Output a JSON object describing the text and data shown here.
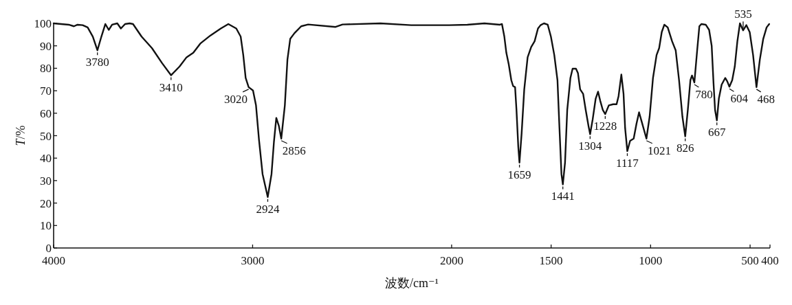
{
  "chart_data": {
    "type": "line",
    "xlabel": "波数/cm⁻¹",
    "ylabel": "*T*/%",
    "xlim": [
      4000,
      400
    ],
    "ylim": [
      0,
      100
    ],
    "xticks": [
      4000,
      3000,
      2000,
      1500,
      1000,
      500,
      400
    ],
    "yticks": [
      0,
      10,
      20,
      30,
      40,
      50,
      60,
      70,
      80,
      90,
      100
    ],
    "series": [
      {
        "color": "#111111",
        "x": [
          4000,
          3924,
          3898,
          3880,
          3854,
          3829,
          3803,
          3780,
          3760,
          3740,
          3723,
          3706,
          3680,
          3662,
          3641,
          3618,
          3601,
          3558,
          3506,
          3455,
          3410,
          3367,
          3332,
          3298,
          3263,
          3212,
          3160,
          3122,
          3082,
          3060,
          3047,
          3035,
          3020,
          2998,
          2983,
          2968,
          2950,
          2924,
          2905,
          2893,
          2881,
          2868,
          2856,
          2838,
          2825,
          2811,
          2790,
          2756,
          2721,
          2583,
          2548,
          2358,
          2203,
          2013,
          1921,
          1835,
          1757,
          1747,
          1735,
          1725,
          1713,
          1700,
          1691,
          1681,
          1674,
          1665,
          1659,
          1648,
          1635,
          1618,
          1600,
          1583,
          1566,
          1553,
          1536,
          1517,
          1501,
          1484,
          1468,
          1458,
          1448,
          1441,
          1430,
          1419,
          1403,
          1392,
          1375,
          1365,
          1354,
          1339,
          1326,
          1312,
          1304,
          1291,
          1276,
          1264,
          1253,
          1240,
          1228,
          1210,
          1188,
          1171,
          1161,
          1147,
          1136,
          1128,
          1117,
          1103,
          1085,
          1071,
          1058,
          1045,
          1021,
          1005,
          988,
          970,
          957,
          944,
          931,
          914,
          892,
          874,
          857,
          840,
          826,
          813,
          800,
          792,
          780,
          766,
          755,
          745,
          723,
          706,
          693,
          684,
          676,
          667,
          657,
          643,
          625,
          615,
          604,
          590,
          577,
          564,
          551,
          535,
          519,
          502,
          485,
          468,
          451,
          434,
          417,
          404
        ],
        "values": [
          100,
          99.4,
          98.7,
          99.4,
          99.2,
          98.2,
          94.1,
          88.0,
          94.1,
          99.7,
          97.1,
          99.4,
          100,
          97.7,
          99.7,
          100,
          99.7,
          94.1,
          89.0,
          82.3,
          76.9,
          80.8,
          84.9,
          86.9,
          91.0,
          94.6,
          97.7,
          99.7,
          97.7,
          94.1,
          85.9,
          75.7,
          71.6,
          70.1,
          63.5,
          48.2,
          32.9,
          22.7,
          32.9,
          47.1,
          57.9,
          54.3,
          48.7,
          63.5,
          83.9,
          93.1,
          95.6,
          98.7,
          99.5,
          98.4,
          99.5,
          100,
          99.2,
          99.2,
          99.4,
          100,
          99.4,
          99.7,
          94.1,
          86.9,
          81.8,
          74.7,
          72.1,
          71.6,
          61.4,
          45.1,
          38.0,
          51.2,
          70.6,
          84.9,
          89.5,
          92.0,
          97.7,
          99.2,
          100,
          99.4,
          94.1,
          85.9,
          74.7,
          53.3,
          32.9,
          28.3,
          38.0,
          61.4,
          75.7,
          79.8,
          79.8,
          77.8,
          70.6,
          68.6,
          61.4,
          54.3,
          50.7,
          57.3,
          66.5,
          69.6,
          65.5,
          61.4,
          59.6,
          63.5,
          64.0,
          64.0,
          67.6,
          77.2,
          68.6,
          53.3,
          43.1,
          47.7,
          48.7,
          55.3,
          60.4,
          56.3,
          48.7,
          58.4,
          75.7,
          85.9,
          89.0,
          96.1,
          99.4,
          98.2,
          92.0,
          88.0,
          74.7,
          58.4,
          49.7,
          61.4,
          74.7,
          76.8,
          73.7,
          88.0,
          98.7,
          99.7,
          99.4,
          97.1,
          90.0,
          73.7,
          61.4,
          56.8,
          66.5,
          72.7,
          75.7,
          74.2,
          71.8,
          74.7,
          80.8,
          92.0,
          100,
          96.9,
          99.2,
          96.1,
          85.9,
          71.6,
          83.9,
          93.1,
          98.2,
          99.7
        ]
      }
    ],
    "annotations": [
      {
        "text": "3780",
        "x": 3780,
        "y": 88.0
      },
      {
        "text": "3410",
        "x": 3410,
        "y": 76.9
      },
      {
        "text": "3020",
        "x": 3020,
        "y": 71.6
      },
      {
        "text": "2924",
        "x": 2924,
        "y": 22.7
      },
      {
        "text": "2856",
        "x": 2856,
        "y": 48.7
      },
      {
        "text": "1659",
        "x": 1659,
        "y": 38.0
      },
      {
        "text": "1441",
        "x": 1441,
        "y": 28.3
      },
      {
        "text": "1304",
        "x": 1304,
        "y": 50.7
      },
      {
        "text": "1228",
        "x": 1228,
        "y": 59.6
      },
      {
        "text": "1117",
        "x": 1117,
        "y": 43.1
      },
      {
        "text": "1021",
        "x": 1021,
        "y": 48.7
      },
      {
        "text": "826",
        "x": 826,
        "y": 49.7
      },
      {
        "text": "780",
        "x": 780,
        "y": 73.7
      },
      {
        "text": "667",
        "x": 667,
        "y": 56.8
      },
      {
        "text": "604",
        "x": 604,
        "y": 71.8
      },
      {
        "text": "535",
        "x": 535,
        "y": 96.9
      },
      {
        "text": "468",
        "x": 468,
        "y": 71.6
      }
    ]
  }
}
